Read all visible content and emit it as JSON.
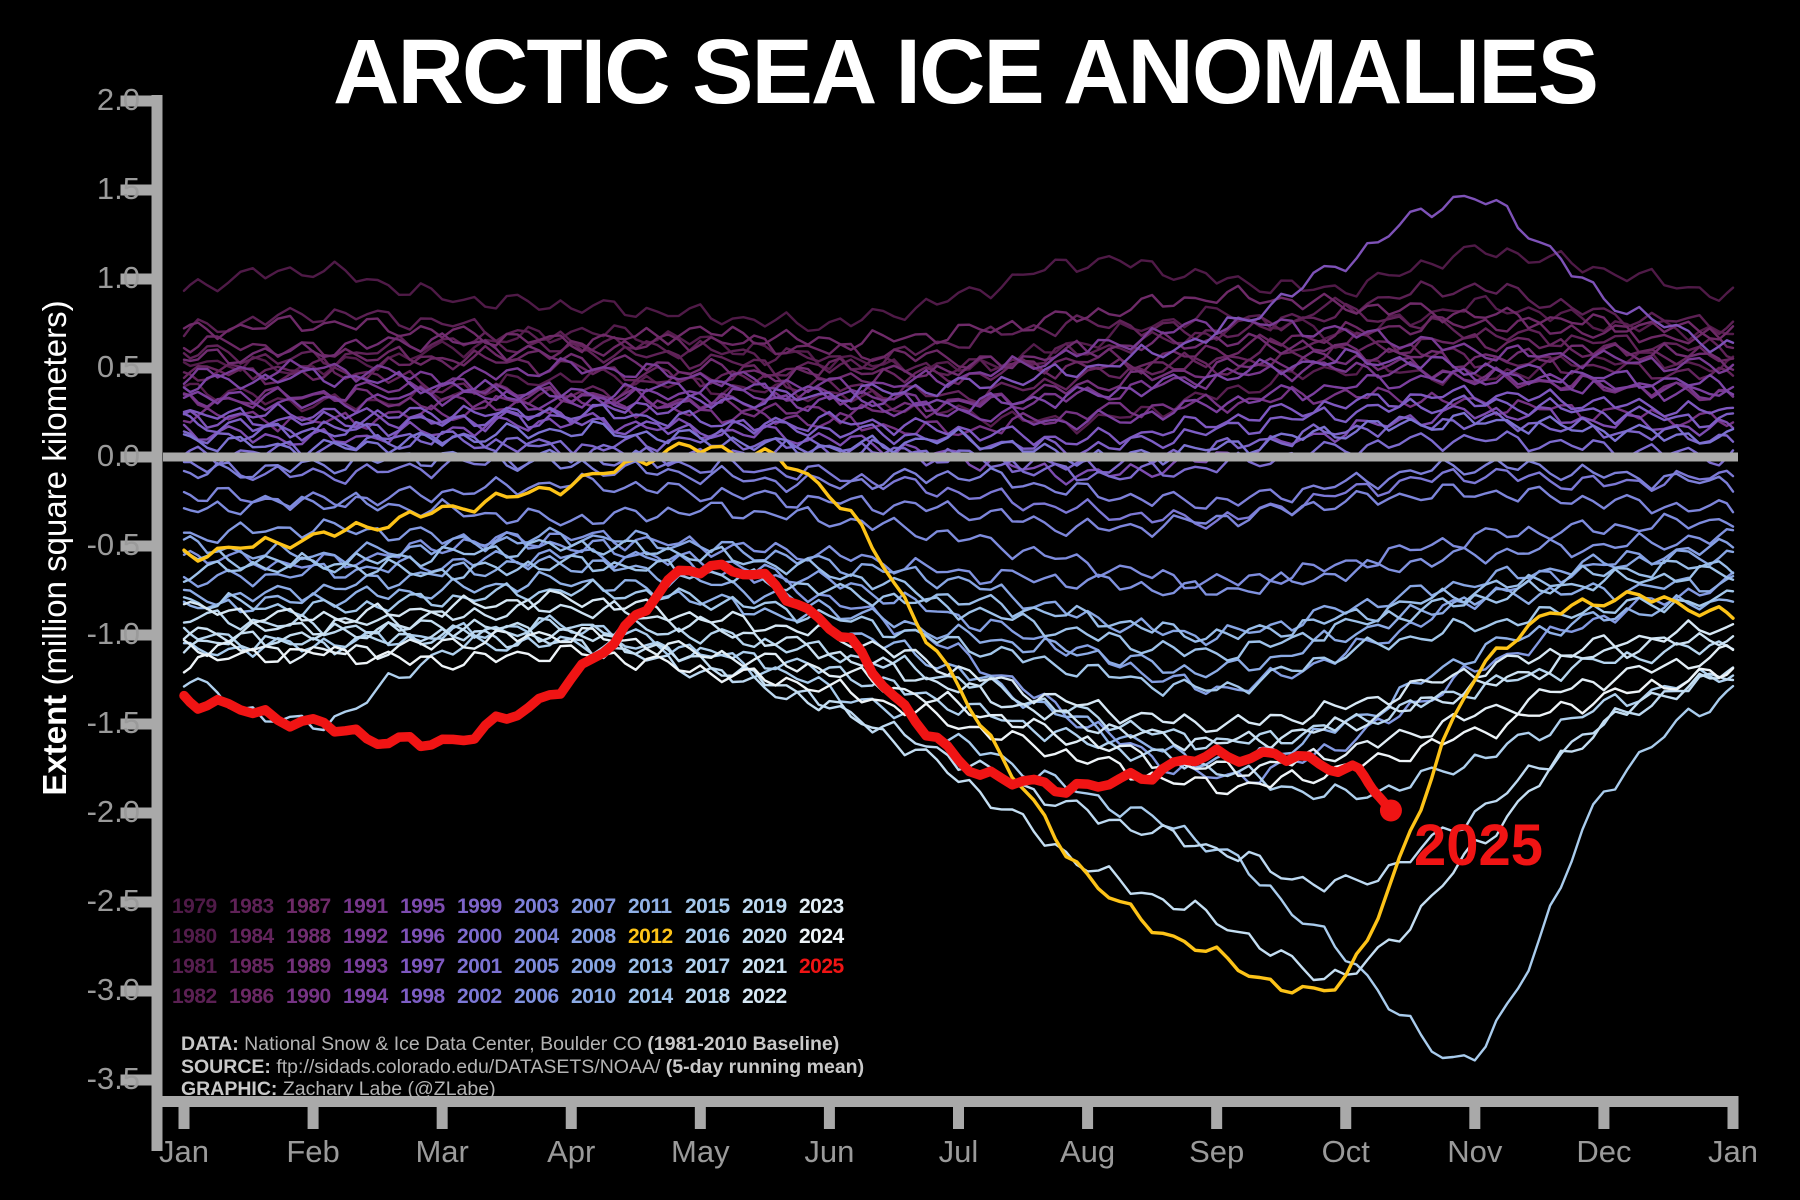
{
  "title": "ARCTIC SEA ICE ANOMALIES",
  "annotation_2025": "2025",
  "y_axis": {
    "label_bold": "Extent",
    "label_rest": " (million square kilometers)",
    "ticks": [
      "2.0",
      "1.5",
      "1.0",
      "0.5",
      "0.0",
      "-0.5",
      "-1.0",
      "-1.5",
      "-2.0",
      "-2.5",
      "-3.0",
      "-3.5"
    ],
    "max": 2.0,
    "min": -3.5
  },
  "x_axis": {
    "ticks": [
      "Jan",
      "Feb",
      "Mar",
      "Apr",
      "May",
      "Jun",
      "Jul",
      "Aug",
      "Sep",
      "Oct",
      "Nov",
      "Dec",
      "Jan"
    ]
  },
  "legend": {
    "rows": [
      [
        "1979",
        "1983",
        "1987",
        "1991",
        "1995",
        "1999",
        "2003",
        "2007",
        "2011",
        "2015",
        "2019",
        "2023"
      ],
      [
        "1980",
        "1984",
        "1988",
        "1992",
        "1996",
        "2000",
        "2004",
        "2008",
        "2012",
        "2016",
        "2020",
        "2024"
      ],
      [
        "1981",
        "1985",
        "1989",
        "1993",
        "1997",
        "2001",
        "2005",
        "2009",
        "2013",
        "2017",
        "2021",
        "2025"
      ],
      [
        "1982",
        "1986",
        "1990",
        "1994",
        "1998",
        "2002",
        "2006",
        "2010",
        "2014",
        "2018",
        "2022"
      ]
    ]
  },
  "credits": {
    "lines": [
      {
        "label": "DATA:",
        "text": " National Snow & Ice Data Center, Boulder CO ",
        "bold": "(1981-2010 Baseline)"
      },
      {
        "label": "SOURCE:",
        "text": " ftp://sidads.colorado.edu/DATASETS/NOAA/ ",
        "bold": "(5-day running mean)"
      },
      {
        "label": "GRAPHIC:",
        "text": " Zachary Labe (@ZLabe)",
        "bold": ""
      }
    ]
  },
  "colors": {
    "background": "#000000",
    "title": "#ffffff",
    "axis": "#a9a9a9",
    "zero_line": "#a9a9a9",
    "tick_text": "#9a9a9a",
    "credit_text": "#b4b4b4",
    "highlight_2012": "#fdc318",
    "highlight_2025": "#f01414"
  },
  "chart_data": {
    "type": "line",
    "title": "ARCTIC SEA ICE ANOMALIES",
    "ylabel": "Extent (million square kilometers)",
    "ylim": [
      -3.5,
      2.0
    ],
    "zero_baseline": true,
    "x_months": [
      "Jan",
      "Feb",
      "Mar",
      "Apr",
      "May",
      "Jun",
      "Jul",
      "Aug",
      "Sep",
      "Oct",
      "Nov",
      "Dec",
      "Jan"
    ],
    "series": [
      {
        "year": 1979,
        "color": "#4f1a47",
        "values": [
          0.95,
          1.05,
          0.9,
          0.85,
          0.8,
          0.75,
          0.9,
          1.1,
          1.0,
          0.95,
          1.15,
          1.05,
          0.9
        ]
      },
      {
        "year": 1980,
        "color": "#531c4b",
        "values": [
          0.55,
          0.5,
          0.6,
          0.7,
          0.65,
          0.55,
          0.5,
          0.65,
          0.8,
          0.7,
          0.85,
          0.75,
          0.7
        ]
      },
      {
        "year": 1981,
        "color": "#571e4f",
        "values": [
          0.4,
          0.3,
          0.35,
          0.45,
          0.4,
          0.35,
          0.25,
          0.2,
          0.35,
          0.5,
          0.45,
          0.55,
          0.5
        ]
      },
      {
        "year": 1982,
        "color": "#5b2053",
        "values": [
          0.7,
          0.8,
          0.75,
          0.65,
          0.6,
          0.55,
          0.5,
          0.6,
          0.7,
          0.85,
          0.95,
          0.8,
          0.75
        ]
      },
      {
        "year": 1983,
        "color": "#5f2257",
        "values": [
          0.6,
          0.55,
          0.65,
          0.6,
          0.55,
          0.5,
          0.65,
          0.75,
          0.7,
          0.8,
          0.7,
          0.65,
          0.6
        ]
      },
      {
        "year": 1984,
        "color": "#63245c",
        "values": [
          0.45,
          0.5,
          0.4,
          0.35,
          0.45,
          0.4,
          0.35,
          0.45,
          0.55,
          0.65,
          0.55,
          0.5,
          0.45
        ]
      },
      {
        "year": 1985,
        "color": "#672660",
        "values": [
          0.5,
          0.45,
          0.55,
          0.5,
          0.45,
          0.5,
          0.45,
          0.55,
          0.5,
          0.6,
          0.65,
          0.6,
          0.55
        ]
      },
      {
        "year": 1986,
        "color": "#6b2864",
        "values": [
          0.65,
          0.6,
          0.55,
          0.6,
          0.65,
          0.6,
          0.55,
          0.5,
          0.6,
          0.7,
          0.75,
          0.7,
          0.65
        ]
      },
      {
        "year": 1987,
        "color": "#6e2a68",
        "values": [
          0.7,
          0.75,
          0.7,
          0.65,
          0.7,
          0.65,
          0.7,
          0.8,
          0.9,
          0.85,
          0.8,
          0.75,
          0.7
        ]
      },
      {
        "year": 1988,
        "color": "#702d71",
        "values": [
          0.55,
          0.6,
          0.65,
          0.55,
          0.5,
          0.45,
          0.5,
          0.6,
          0.65,
          0.6,
          0.55,
          0.6,
          0.55
        ]
      },
      {
        "year": 1989,
        "color": "#73307a",
        "values": [
          0.3,
          0.35,
          0.3,
          0.35,
          0.3,
          0.25,
          0.3,
          0.4,
          0.5,
          0.55,
          0.45,
          0.4,
          0.35
        ]
      },
      {
        "year": 1990,
        "color": "#753383",
        "values": [
          0.25,
          0.2,
          0.25,
          0.3,
          0.25,
          0.2,
          0.15,
          0.25,
          0.3,
          0.35,
          0.3,
          0.25,
          0.2
        ]
      },
      {
        "year": 1991,
        "color": "#77378c",
        "values": [
          0.3,
          0.35,
          0.4,
          0.35,
          0.3,
          0.35,
          0.3,
          0.35,
          0.45,
          0.5,
          0.45,
          0.4,
          0.35
        ]
      },
      {
        "year": 1992,
        "color": "#793b95",
        "values": [
          0.45,
          0.5,
          0.45,
          0.5,
          0.45,
          0.4,
          0.45,
          0.6,
          0.75,
          0.7,
          0.6,
          0.55,
          0.5
        ]
      },
      {
        "year": 1993,
        "color": "#7b3f9e",
        "values": [
          0.35,
          0.3,
          0.35,
          0.3,
          0.35,
          0.3,
          0.25,
          0.2,
          0.3,
          0.4,
          0.45,
          0.4,
          0.35
        ]
      },
      {
        "year": 1994,
        "color": "#7c45a7",
        "values": [
          0.4,
          0.45,
          0.4,
          0.35,
          0.4,
          0.35,
          0.3,
          0.35,
          0.45,
          0.55,
          0.5,
          0.45,
          0.4
        ]
      },
      {
        "year": 1995,
        "color": "#7d4cb0",
        "values": [
          0.15,
          0.1,
          0.15,
          0.2,
          0.15,
          0.1,
          0.0,
          -0.1,
          0.0,
          0.15,
          0.25,
          0.2,
          0.15
        ]
      },
      {
        "year": 1996,
        "color": "#7e52b8",
        "values": [
          0.2,
          0.25,
          0.2,
          0.25,
          0.3,
          0.35,
          0.4,
          0.5,
          0.7,
          1.1,
          1.45,
          0.9,
          0.6
        ]
      },
      {
        "year": 1997,
        "color": "#7e58c0",
        "values": [
          0.25,
          0.2,
          0.25,
          0.2,
          0.15,
          0.2,
          0.15,
          0.1,
          0.2,
          0.3,
          0.35,
          0.3,
          0.25
        ]
      },
      {
        "year": 1998,
        "color": "#7d5ec5",
        "values": [
          0.2,
          0.15,
          0.2,
          0.25,
          0.2,
          0.15,
          0.1,
          0.05,
          0.15,
          0.25,
          0.3,
          0.25,
          0.2
        ]
      },
      {
        "year": 1999,
        "color": "#7d65c9",
        "values": [
          0.1,
          0.15,
          0.1,
          0.05,
          0.1,
          0.05,
          0.0,
          -0.05,
          0.05,
          0.15,
          0.2,
          0.15,
          0.1
        ]
      },
      {
        "year": 2000,
        "color": "#7c6bce",
        "values": [
          0.0,
          0.05,
          0.1,
          0.05,
          0.0,
          0.05,
          0.0,
          -0.1,
          -0.05,
          0.05,
          0.1,
          0.05,
          0.0
        ]
      },
      {
        "year": 2001,
        "color": "#7c72d2",
        "values": [
          0.1,
          0.05,
          0.1,
          0.15,
          0.1,
          0.05,
          0.1,
          0.0,
          0.05,
          0.15,
          0.2,
          0.15,
          0.1
        ]
      },
      {
        "year": 2002,
        "color": "#7c78d5",
        "values": [
          -0.05,
          -0.1,
          -0.05,
          0.0,
          -0.05,
          -0.1,
          -0.2,
          -0.3,
          -0.35,
          -0.2,
          -0.1,
          -0.15,
          -0.1
        ]
      },
      {
        "year": 2003,
        "color": "#7d7fd8",
        "values": [
          -0.1,
          -0.05,
          0.0,
          -0.05,
          -0.1,
          -0.15,
          -0.1,
          -0.2,
          -0.25,
          -0.15,
          -0.05,
          -0.1,
          -0.15
        ]
      },
      {
        "year": 2004,
        "color": "#7d85da",
        "values": [
          -0.2,
          -0.25,
          -0.2,
          -0.15,
          -0.2,
          -0.25,
          -0.3,
          -0.4,
          -0.35,
          -0.25,
          -0.2,
          -0.25,
          -0.3
        ]
      },
      {
        "year": 2005,
        "color": "#7e8cdd",
        "values": [
          -0.3,
          -0.25,
          -0.3,
          -0.35,
          -0.3,
          -0.35,
          -0.45,
          -0.6,
          -0.7,
          -0.6,
          -0.45,
          -0.4,
          -0.35
        ]
      },
      {
        "year": 2006,
        "color": "#8092df",
        "values": [
          -0.55,
          -0.6,
          -0.5,
          -0.45,
          -0.5,
          -0.55,
          -0.65,
          -0.7,
          -0.75,
          -0.65,
          -0.55,
          -0.5,
          -0.45
        ]
      },
      {
        "year": 2007,
        "color": "#8399e1",
        "values": [
          -0.45,
          -0.4,
          -0.45,
          -0.5,
          -0.6,
          -0.8,
          -1.1,
          -1.5,
          -1.8,
          -1.6,
          -1.2,
          -0.9,
          -0.7
        ]
      },
      {
        "year": 2008,
        "color": "#859fe3",
        "values": [
          -0.7,
          -0.65,
          -0.6,
          -0.55,
          -0.6,
          -0.7,
          -0.9,
          -1.1,
          -1.3,
          -1.1,
          -0.8,
          -0.6,
          -0.5
        ]
      },
      {
        "year": 2009,
        "color": "#88a6e4",
        "values": [
          -0.5,
          -0.55,
          -0.5,
          -0.45,
          -0.5,
          -0.6,
          -0.7,
          -0.9,
          -1.0,
          -0.85,
          -0.7,
          -0.6,
          -0.55
        ]
      },
      {
        "year": 2010,
        "color": "#8cabe5",
        "values": [
          -0.8,
          -0.75,
          -0.65,
          -0.6,
          -0.7,
          -0.85,
          -1.0,
          -1.1,
          -1.2,
          -1.0,
          -0.8,
          -0.75,
          -0.7
        ]
      },
      {
        "year": 2011,
        "color": "#90b1e7",
        "values": [
          -0.85,
          -0.8,
          -0.75,
          -0.7,
          -0.8,
          -0.95,
          -1.2,
          -1.5,
          -1.7,
          -1.5,
          -1.1,
          -0.9,
          -0.8
        ]
      },
      {
        "year": 2012,
        "color": "#fdc318",
        "values": [
          -0.55,
          -0.45,
          -0.3,
          -0.15,
          0.05,
          -0.2,
          -1.3,
          -2.35,
          -2.8,
          -2.9,
          -1.25,
          -0.8,
          -0.9
        ]
      },
      {
        "year": 2013,
        "color": "#99bde9",
        "values": [
          -0.55,
          -0.6,
          -0.55,
          -0.5,
          -0.55,
          -0.65,
          -0.8,
          -0.9,
          -1.0,
          -0.9,
          -0.75,
          -0.65,
          -0.6
        ]
      },
      {
        "year": 2014,
        "color": "#9ec2ea",
        "values": [
          -0.65,
          -0.6,
          -0.65,
          -0.6,
          -0.65,
          -0.75,
          -0.85,
          -1.0,
          -1.1,
          -0.95,
          -0.8,
          -0.7,
          -0.65
        ]
      },
      {
        "year": 2015,
        "color": "#a3c7eb",
        "values": [
          -0.8,
          -0.85,
          -0.8,
          -0.75,
          -0.8,
          -0.9,
          -1.05,
          -1.2,
          -1.3,
          -1.1,
          -0.95,
          -0.85,
          -0.8
        ]
      },
      {
        "year": 2016,
        "color": "#a9cced",
        "values": [
          -1.1,
          -1.05,
          -1.0,
          -0.95,
          -1.1,
          -1.3,
          -1.6,
          -1.9,
          -2.2,
          -2.8,
          -3.35,
          -1.9,
          -1.3
        ]
      },
      {
        "year": 2017,
        "color": "#afd0ee",
        "values": [
          -1.25,
          -1.5,
          -1.1,
          -1.05,
          -1.1,
          -1.2,
          -1.4,
          -1.6,
          -1.75,
          -1.9,
          -1.7,
          -1.4,
          -1.2
        ]
      },
      {
        "year": 2018,
        "color": "#b6d5ef",
        "values": [
          -1.0,
          -1.05,
          -1.0,
          -0.95,
          -1.0,
          -1.1,
          -1.25,
          -1.45,
          -1.6,
          -1.5,
          -1.3,
          -1.15,
          -1.05
        ]
      },
      {
        "year": 2019,
        "color": "#bdd9f1",
        "values": [
          -0.9,
          -0.95,
          -1.0,
          -1.05,
          -1.2,
          -1.4,
          -1.7,
          -2.0,
          -2.2,
          -2.4,
          -2.0,
          -1.5,
          -1.2
        ]
      },
      {
        "year": 2020,
        "color": "#c4def2",
        "values": [
          -1.05,
          -1.0,
          -0.95,
          -1.0,
          -1.15,
          -1.4,
          -1.8,
          -2.3,
          -2.6,
          -2.9,
          -2.2,
          -1.5,
          -1.2
        ]
      },
      {
        "year": 2021,
        "color": "#cce2f3",
        "values": [
          -1.0,
          -0.95,
          -0.9,
          -0.85,
          -0.95,
          -1.1,
          -1.3,
          -1.5,
          -1.6,
          -1.5,
          -1.3,
          -1.1,
          -1.0
        ]
      },
      {
        "year": 2022,
        "color": "#d7e8f5",
        "values": [
          -0.85,
          -0.9,
          -0.85,
          -0.8,
          -0.9,
          -1.0,
          -1.2,
          -1.4,
          -1.5,
          -1.4,
          -1.2,
          -1.05,
          -0.95
        ]
      },
      {
        "year": 2023,
        "color": "#e2eef6",
        "values": [
          -1.05,
          -1.1,
          -1.05,
          -1.0,
          -1.1,
          -1.2,
          -1.4,
          -1.6,
          -1.75,
          -1.65,
          -1.45,
          -1.25,
          -1.1
        ]
      },
      {
        "year": 2024,
        "color": "#eef4f8",
        "values": [
          -1.15,
          -1.1,
          -1.15,
          -1.1,
          -1.2,
          -1.3,
          -1.5,
          -1.7,
          -1.85,
          -1.75,
          -1.55,
          -1.35,
          -1.2
        ]
      },
      {
        "year": 2025,
        "color": "#f01414",
        "values": [
          -1.35,
          -1.5,
          -1.6,
          -1.25,
          -0.62,
          -0.95,
          -1.7,
          -1.85,
          -1.68,
          -1.75
        ],
        "end": {
          "month": 9.35,
          "value": -2.0
        }
      }
    ]
  }
}
